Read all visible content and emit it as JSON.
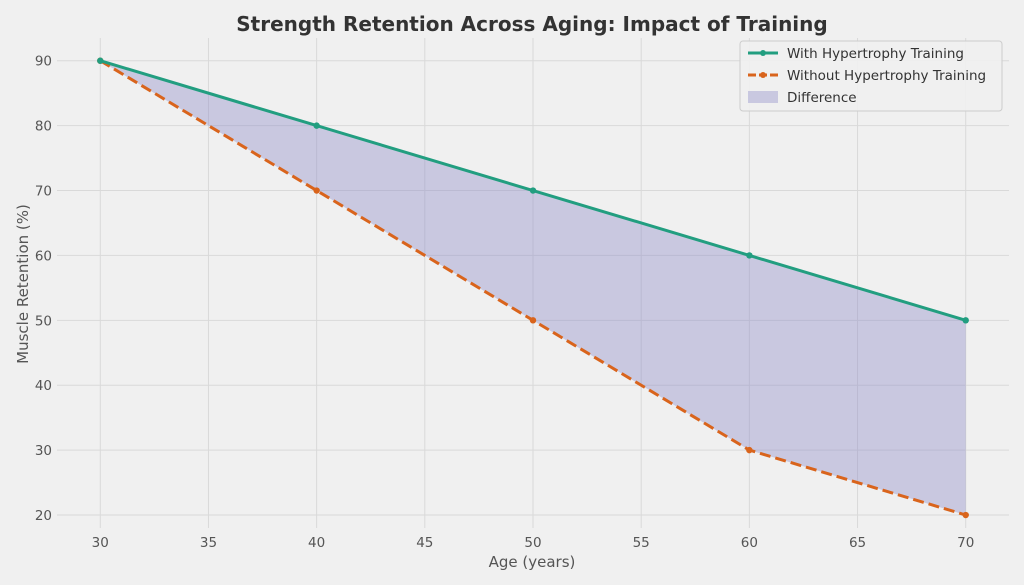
{
  "chart_data": {
    "type": "line",
    "title": "Strength Retention Across Aging: Impact of Training",
    "xlabel": "Age (years)",
    "ylabel": "Muscle Retention (%)",
    "x": [
      30,
      40,
      50,
      60,
      70
    ],
    "xlim": [
      28,
      72
    ],
    "ylim": [
      18,
      93.5
    ],
    "xticks": [
      30,
      35,
      40,
      45,
      50,
      55,
      60,
      65,
      70
    ],
    "yticks": [
      20,
      30,
      40,
      50,
      60,
      70,
      80,
      90
    ],
    "grid": true,
    "legend_position": "top-right",
    "series": [
      {
        "name": "With Hypertrophy Training",
        "values": [
          90,
          80,
          70,
          60,
          50
        ],
        "color": "#229e80",
        "line_style": "solid",
        "marker": "circle"
      },
      {
        "name": "Without Hypertrophy Training",
        "values": [
          90,
          70,
          50,
          30,
          20
        ],
        "color": "#d9641c",
        "line_style": "dashed",
        "marker": "circle"
      }
    ],
    "fill_between": {
      "name": "Difference",
      "between": [
        "With Hypertrophy Training",
        "Without Hypertrophy Training"
      ],
      "color": "#8e8bc8"
    }
  }
}
